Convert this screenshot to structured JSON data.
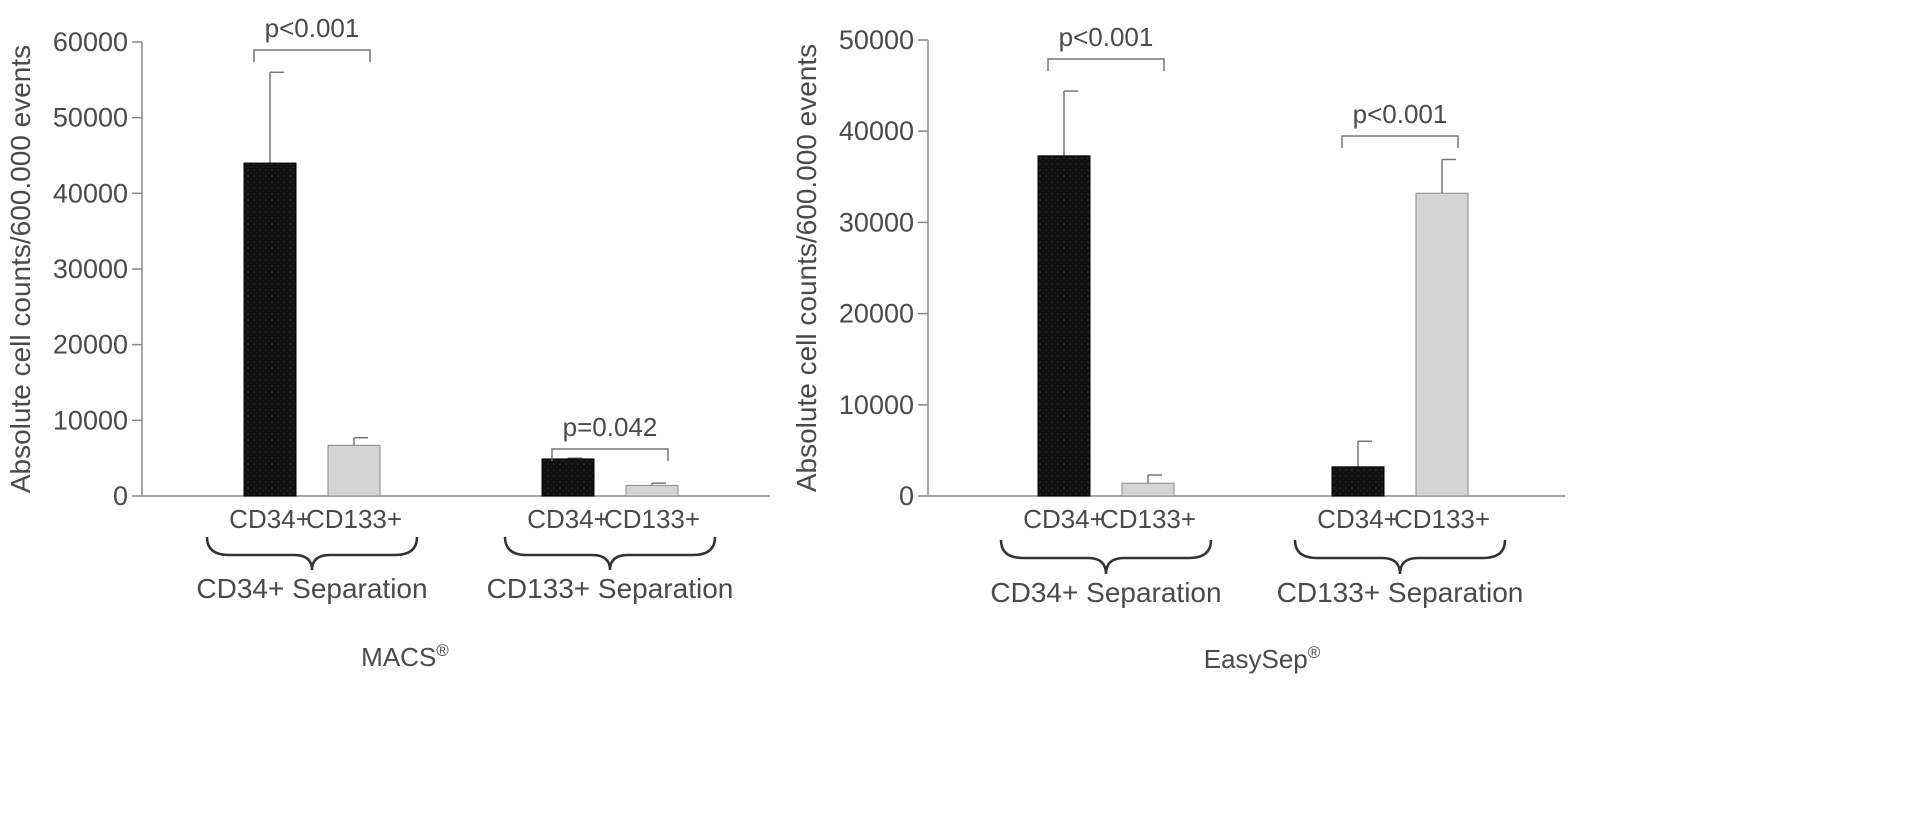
{
  "colors": {
    "cd34_bar": "#111111",
    "cd133_bar": "#d4d4d4",
    "axis": "#888888",
    "text": "#4a4a4a"
  },
  "chart_data": [
    {
      "type": "bar",
      "caption": "MACS",
      "caption_mark": "®",
      "ylabel": "Absolute cell counts/600.000 events",
      "ylim": [
        0,
        60000
      ],
      "yticks": [
        0,
        10000,
        20000,
        30000,
        40000,
        50000,
        60000
      ],
      "grid": false,
      "groups": [
        {
          "label": "CD34+ Separation",
          "bars": [
            {
              "label": "CD34+",
              "value": 44000,
              "error": 12000
            },
            {
              "label": "CD133+",
              "value": 6700,
              "error": 1000
            }
          ],
          "p_value": "p<0.001"
        },
        {
          "label": "CD133+ Separation",
          "bars": [
            {
              "label": "CD34+",
              "value": 4900,
              "error": 100
            },
            {
              "label": "CD133+",
              "value": 1400,
              "error": 300
            }
          ],
          "p_value": "p=0.042"
        }
      ]
    },
    {
      "type": "bar",
      "caption": "EasySep",
      "caption_mark": "®",
      "ylabel": "Absolute cell counts/600.000 events",
      "ylim": [
        0,
        50000
      ],
      "yticks": [
        0,
        10000,
        20000,
        30000,
        40000,
        50000
      ],
      "grid": false,
      "groups": [
        {
          "label": "CD34+ Separation",
          "bars": [
            {
              "label": "CD34+",
              "value": 37300,
              "error": 7100
            },
            {
              "label": "CD133+",
              "value": 1400,
              "error": 900
            }
          ],
          "p_value": "p<0.001"
        },
        {
          "label": "CD133+ Separation",
          "bars": [
            {
              "label": "CD34+",
              "value": 3200,
              "error": 2800
            },
            {
              "label": "CD133+",
              "value": 33200,
              "error": 3700
            }
          ],
          "p_value": "p<0.001"
        }
      ]
    }
  ]
}
